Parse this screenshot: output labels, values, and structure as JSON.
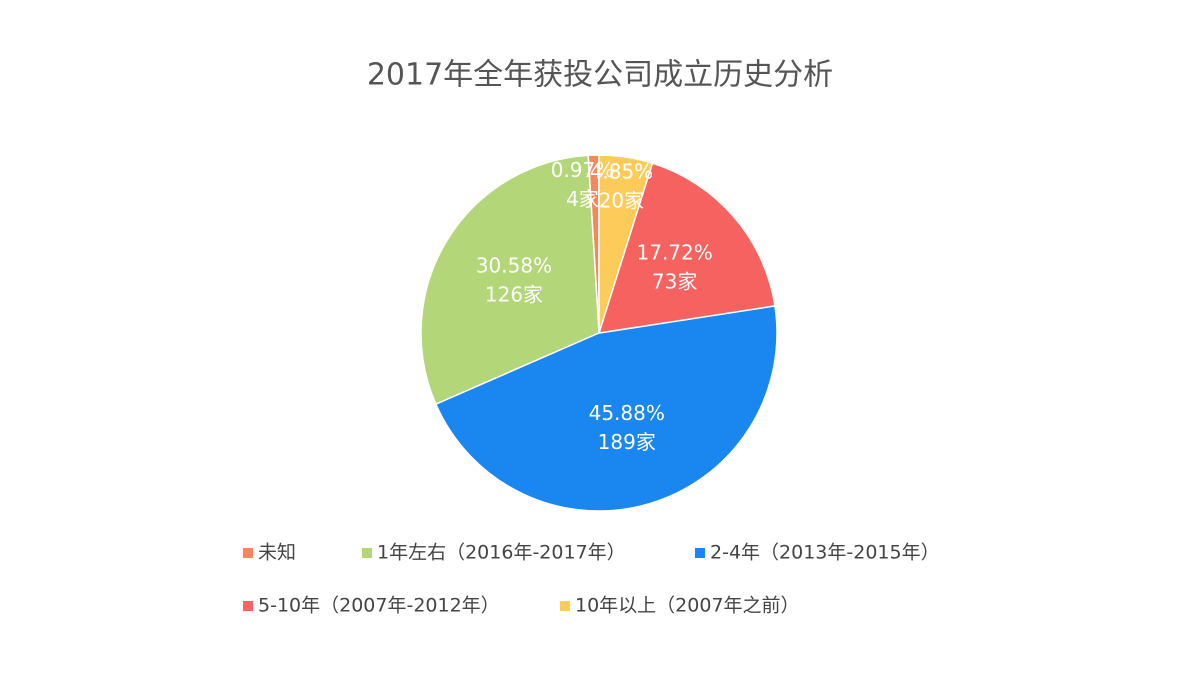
{
  "chart_data": {
    "type": "pie",
    "title": "2017年全年获投公司成立历史分析",
    "categories": [
      "未知",
      "1年左右（2016年-2017年）",
      "2-4年（2013年-2015年）",
      "5-10年（2007年-2012年）",
      "10年以上（2007年之前）"
    ],
    "values": [
      0.97,
      30.58,
      45.88,
      17.72,
      4.85
    ],
    "value_labels": [
      "0.97%",
      "30.58%",
      "45.88%",
      "17.72%",
      "4.85%"
    ],
    "counts": [
      4,
      126,
      189,
      73,
      20
    ],
    "count_labels": [
      "4家",
      "126家",
      "189家",
      "73家",
      "20家"
    ],
    "colors": [
      "#f4875c",
      "#b3d678",
      "#1a86f0",
      "#f6625f",
      "#fccb5a"
    ],
    "direction": "counterclockwise",
    "start": "top",
    "legend": "bottom"
  }
}
